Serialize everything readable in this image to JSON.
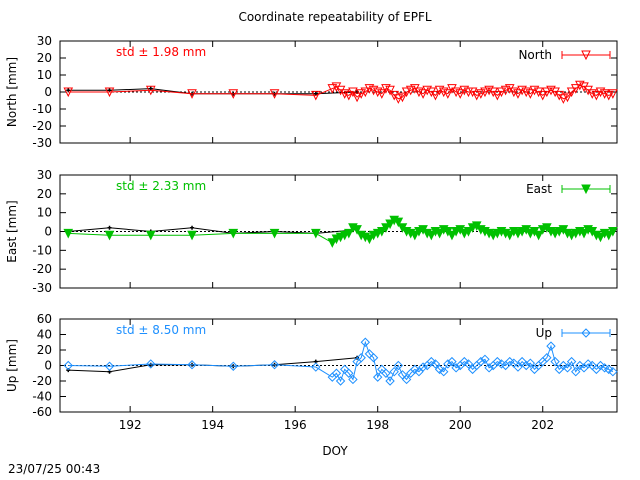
{
  "footer": {
    "timestamp": "23/07/25 00:43"
  },
  "chart_data": {
    "type": "line",
    "title": "Coordinate repeatability of EPFL",
    "xlabel": "DOY",
    "xlim": [
      190.3,
      203.8
    ],
    "xticks": [
      192,
      194,
      196,
      198,
      200,
      202
    ],
    "panels": [
      {
        "name": "north",
        "ylabel": "North [mm]",
        "ylim": [
          -30,
          30
        ],
        "yticks": [
          -30,
          -20,
          -10,
          0,
          10,
          20,
          30
        ],
        "std_label": "std ± 1.98 mm",
        "legend": "North",
        "color": "#ff0000",
        "marker": "triangle-down-open",
        "daily_x": [
          190.5,
          191.5,
          192.5,
          193.5,
          194.5,
          195.5,
          196.5,
          197.5
        ],
        "daily_y": [
          1,
          1,
          2,
          -1,
          -1,
          -1,
          -1,
          0
        ],
        "series_x": [
          190.5,
          191.5,
          192.5,
          193.5,
          194.5,
          195.5,
          196.5,
          196.9,
          197.0,
          197.1,
          197.2,
          197.3,
          197.4,
          197.5,
          197.6,
          197.7,
          197.8,
          197.9,
          198.0,
          198.1,
          198.2,
          198.3,
          198.4,
          198.5,
          198.6,
          198.7,
          198.8,
          198.9,
          199.0,
          199.1,
          199.2,
          199.3,
          199.4,
          199.5,
          199.6,
          199.7,
          199.8,
          199.9,
          200.0,
          200.1,
          200.2,
          200.3,
          200.4,
          200.5,
          200.6,
          200.7,
          200.8,
          200.9,
          201.0,
          201.1,
          201.2,
          201.3,
          201.4,
          201.5,
          201.6,
          201.7,
          201.8,
          201.9,
          202.0,
          202.1,
          202.2,
          202.3,
          202.4,
          202.5,
          202.6,
          202.7,
          202.8,
          202.9,
          203.0,
          203.1,
          203.2,
          203.3,
          203.4,
          203.5,
          203.6,
          203.7
        ],
        "series_y": [
          0,
          0,
          1,
          -1,
          -1,
          -1,
          -2,
          2,
          3,
          1,
          -1,
          -2,
          0,
          -3,
          -1,
          0,
          2,
          1,
          0,
          -1,
          2,
          1,
          -2,
          -4,
          -3,
          0,
          1,
          2,
          0,
          -1,
          1,
          0,
          -2,
          1,
          0,
          -1,
          2,
          0,
          -1,
          1,
          0,
          0,
          -2,
          -1,
          0,
          1,
          0,
          -2,
          0,
          1,
          2,
          0,
          -1,
          1,
          0,
          -1,
          1,
          0,
          -2,
          0,
          1,
          0,
          -2,
          -4,
          -3,
          0,
          2,
          4,
          3,
          1,
          -1,
          -2,
          0,
          -1,
          -2,
          -1
        ]
      },
      {
        "name": "east",
        "ylabel": "East [mm]",
        "ylim": [
          -30,
          30
        ],
        "yticks": [
          -30,
          -20,
          -10,
          0,
          10,
          20,
          30
        ],
        "std_label": "std ± 2.33 mm",
        "legend": "East",
        "color": "#00c000",
        "marker": "triangle-down-filled",
        "daily_x": [
          190.5,
          191.5,
          192.5,
          193.5,
          194.5,
          195.5,
          196.5,
          197.5
        ],
        "daily_y": [
          0,
          2,
          0,
          2,
          -1,
          0,
          -1,
          1
        ],
        "series_x": [
          190.5,
          191.5,
          192.5,
          193.5,
          194.5,
          195.5,
          196.5,
          196.9,
          197.0,
          197.1,
          197.2,
          197.3,
          197.4,
          197.5,
          197.6,
          197.7,
          197.8,
          197.9,
          198.0,
          198.1,
          198.2,
          198.3,
          198.4,
          198.5,
          198.6,
          198.7,
          198.8,
          198.9,
          199.0,
          199.1,
          199.2,
          199.3,
          199.4,
          199.5,
          199.6,
          199.7,
          199.8,
          199.9,
          200.0,
          200.1,
          200.2,
          200.3,
          200.4,
          200.5,
          200.6,
          200.7,
          200.8,
          200.9,
          201.0,
          201.1,
          201.2,
          201.3,
          201.4,
          201.5,
          201.6,
          201.7,
          201.8,
          201.9,
          202.0,
          202.1,
          202.2,
          202.3,
          202.4,
          202.5,
          202.6,
          202.7,
          202.8,
          202.9,
          203.0,
          203.1,
          203.2,
          203.3,
          203.4,
          203.5,
          203.6,
          203.7
        ],
        "series_y": [
          -1,
          -2,
          -2,
          -2,
          -1,
          -1,
          -1,
          -6,
          -4,
          -3,
          -2,
          -1,
          2,
          1,
          -2,
          -3,
          -4,
          -2,
          -1,
          0,
          2,
          4,
          6,
          5,
          2,
          0,
          -1,
          -2,
          0,
          1,
          -1,
          -2,
          0,
          -1,
          1,
          0,
          -2,
          0,
          1,
          -1,
          0,
          2,
          3,
          1,
          0,
          -1,
          -2,
          -1,
          0,
          -1,
          -2,
          0,
          -1,
          0,
          1,
          -1,
          0,
          -2,
          1,
          2,
          0,
          -1,
          0,
          1,
          -1,
          -2,
          -1,
          0,
          -1,
          1,
          0,
          -2,
          -3,
          -1,
          -2,
          0
        ]
      },
      {
        "name": "up",
        "ylabel": "Up [mm]",
        "ylim": [
          -60,
          60
        ],
        "yticks": [
          -60,
          -40,
          -20,
          0,
          20,
          40,
          60
        ],
        "std_label": "std ± 8.50 mm",
        "legend": "Up",
        "color": "#1e90ff",
        "marker": "diamond-open",
        "daily_x": [
          190.5,
          191.5,
          192.5,
          193.5,
          194.5,
          195.5,
          196.5,
          197.5
        ],
        "daily_y": [
          -6,
          -8,
          1,
          1,
          -1,
          1,
          5,
          10
        ],
        "series_x": [
          190.5,
          191.5,
          192.5,
          193.5,
          194.5,
          195.5,
          196.5,
          196.9,
          197.0,
          197.1,
          197.2,
          197.3,
          197.4,
          197.5,
          197.6,
          197.7,
          197.8,
          197.9,
          198.0,
          198.1,
          198.2,
          198.3,
          198.4,
          198.5,
          198.6,
          198.7,
          198.8,
          198.9,
          199.0,
          199.1,
          199.2,
          199.3,
          199.4,
          199.5,
          199.6,
          199.7,
          199.8,
          199.9,
          200.0,
          200.1,
          200.2,
          200.3,
          200.4,
          200.5,
          200.6,
          200.7,
          200.8,
          200.9,
          201.0,
          201.1,
          201.2,
          201.3,
          201.4,
          201.5,
          201.6,
          201.7,
          201.8,
          201.9,
          202.0,
          202.1,
          202.2,
          202.3,
          202.4,
          202.5,
          202.6,
          202.7,
          202.8,
          202.9,
          203.0,
          203.1,
          203.2,
          203.3,
          203.4,
          203.5,
          203.6,
          203.7
        ],
        "series_y": [
          0,
          -1,
          2,
          1,
          -1,
          1,
          -2,
          -15,
          -10,
          -20,
          -5,
          -10,
          -18,
          5,
          10,
          30,
          15,
          10,
          -15,
          -5,
          -10,
          -20,
          -8,
          0,
          -12,
          -18,
          -10,
          -5,
          -8,
          -2,
          0,
          5,
          2,
          -5,
          -8,
          2,
          5,
          -3,
          0,
          5,
          2,
          -5,
          0,
          5,
          8,
          -3,
          0,
          5,
          2,
          0,
          5,
          3,
          -2,
          5,
          0,
          3,
          -5,
          0,
          5,
          10,
          25,
          5,
          -5,
          0,
          -3,
          5,
          -8,
          0,
          -3,
          2,
          0,
          -5,
          0,
          -3,
          -5,
          -8
        ]
      }
    ]
  }
}
